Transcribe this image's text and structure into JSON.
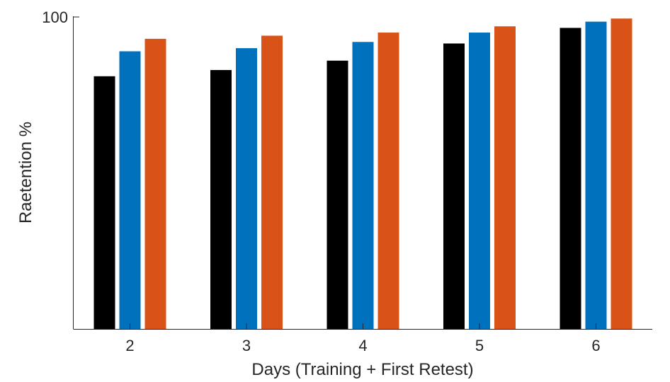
{
  "chart_data": {
    "type": "bar",
    "categories": [
      "2",
      "3",
      "4",
      "5",
      "6"
    ],
    "series": [
      {
        "color": "#000000",
        "values": [
          81,
          83,
          86,
          91.5,
          96.5
        ]
      },
      {
        "color": "#0072BD",
        "values": [
          89,
          90,
          92,
          95,
          98.5
        ]
      },
      {
        "color": "#D95319",
        "values": [
          93,
          94,
          95,
          97,
          99.5
        ]
      }
    ],
    "xlabel": "Days (Training + First Retest)",
    "ylabel": "Raetention %",
    "ylim": [
      0,
      100
    ],
    "yticks": [
      100
    ],
    "ytick_labels": [
      "100"
    ],
    "grid": false,
    "legend": "none"
  }
}
